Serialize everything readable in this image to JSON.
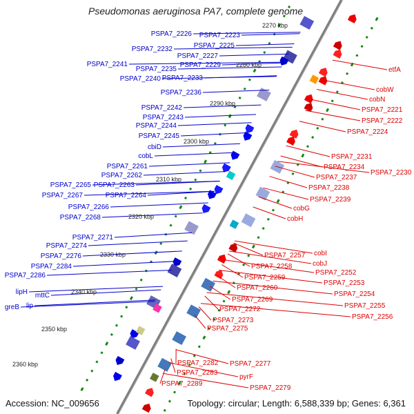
{
  "title": "Pseudomonas aeruginosa PA7, complete genome",
  "footer": {
    "accession": "Accession: NC_009656",
    "topology": "Topology: circular; Length: 6,588,339 bp; Genes: 6,361"
  },
  "colors": {
    "forward_gene": "#0000ee",
    "reverse_gene": "#ee0000",
    "backbone": "#808080",
    "tick": "#118811",
    "label_forward": "#0000cc",
    "label_reverse": "#dd0000"
  },
  "kbp_ticks": [
    "2270 kbp",
    "2280 kbp",
    "2290 kbp",
    "2300 kbp",
    "2310 kbp",
    "2320 kbp",
    "2330 kbp",
    "2340 kbp",
    "2350 kbp",
    "2360 kbp"
  ],
  "forward_labels": [
    "PSPA7_2226",
    "PSPA7_2223",
    "PSPA7_2225",
    "PSPA7_2232",
    "PSPA7_2227",
    "PSPA7_2241",
    "PSPA7_2229",
    "PSPA7_2235",
    "PSPA7_2240",
    "PSPA7_2233",
    "PSPA7_2236",
    "PSPA7_2242",
    "PSPA7_2243",
    "PSPA7_2244",
    "PSPA7_2245",
    "cbiD",
    "cobL",
    "PSPA7_2261",
    "PSPA7_2262",
    "PSPA7_2265",
    "PSPA7_2263",
    "PSPA7_2267",
    "PSPA7_2264",
    "PSPA7_2266",
    "PSPA7_2268",
    "PSPA7_2271",
    "PSPA7_2274",
    "PSPA7_2276",
    "PSPA7_2284",
    "PSPA7_2286",
    "lipH",
    "mttC",
    "greB",
    "lip"
  ],
  "reverse_labels": [
    "etfA",
    "cobW",
    "cobN",
    "PSPA7_2221",
    "PSPA7_2222",
    "PSPA7_2224",
    "PSPA7_2231",
    "PSPA7_2234",
    "PSPA7_2230",
    "PSPA7_2237",
    "PSPA7_2238",
    "PSPA7_2239",
    "cobG",
    "cobH",
    "cobI",
    "PSPA7_2257",
    "cobJ",
    "PSPA7_2258",
    "PSPA7_2252",
    "PSPA7_2259",
    "PSPA7_2253",
    "PSPA7_2260",
    "PSPA7_2254",
    "PSPA7_2255",
    "PSPA7_2269",
    "PSPA7_2256",
    "PSPA7_2272",
    "PSPA7_2273",
    "PSPA7_2275",
    "PSPA7_2282",
    "PSPA7_2277",
    "PSPA7_2283",
    "pyrF",
    "PSPA7_2289",
    "PSPA7_2279"
  ]
}
